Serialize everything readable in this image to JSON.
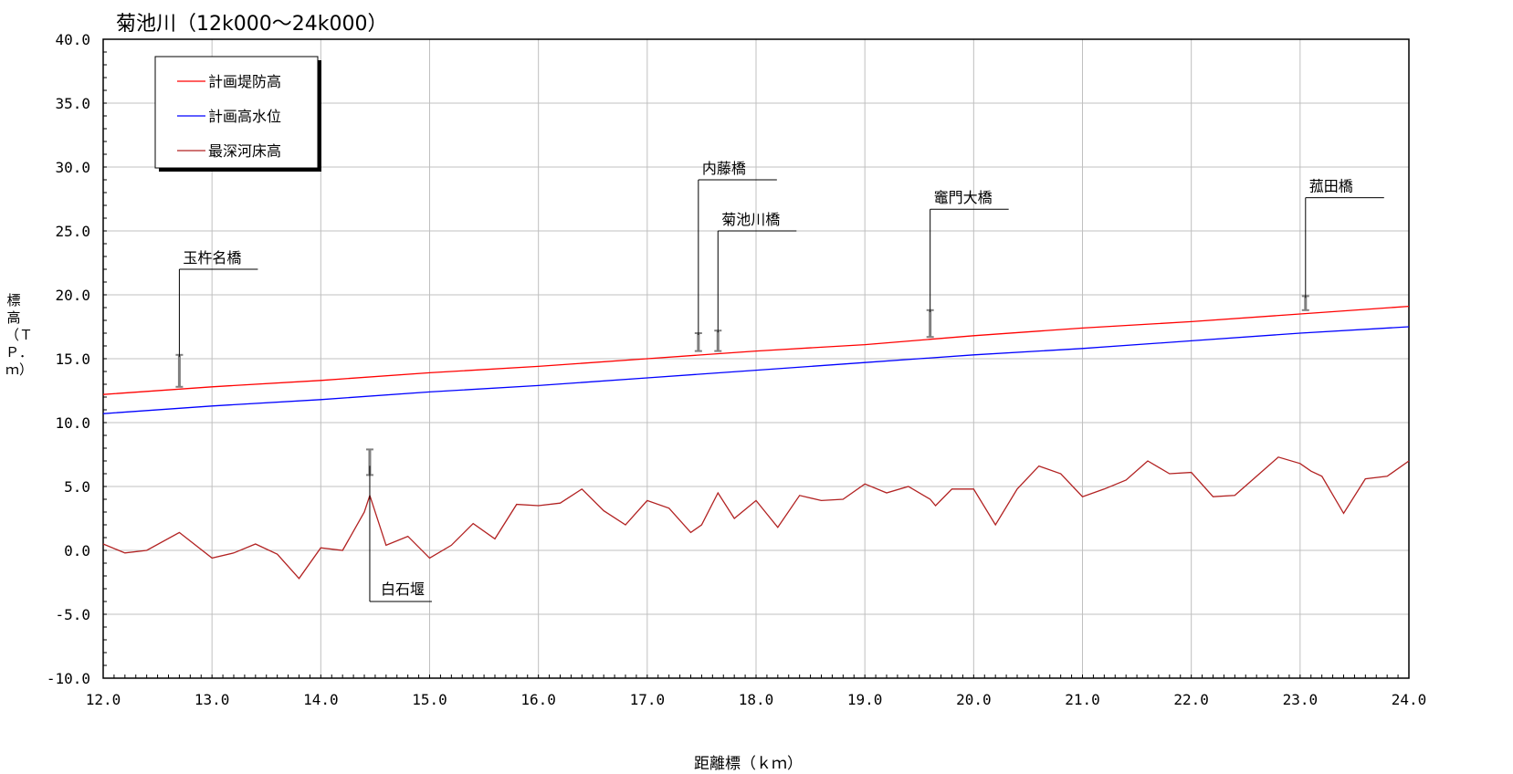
{
  "chart_data": {
    "type": "line",
    "title": "菊池川（12k000～24k000）",
    "xlabel": "距離標（ｋｍ）",
    "ylabel": "標高（ＴＰ．ｍ）",
    "xlim": [
      12.0,
      24.0
    ],
    "ylim": [
      -10.0,
      40.0
    ],
    "x_ticks": [
      "12.0",
      "13.0",
      "14.0",
      "15.0",
      "16.0",
      "17.0",
      "18.0",
      "19.0",
      "20.0",
      "21.0",
      "22.0",
      "23.0",
      "24.0"
    ],
    "y_ticks": [
      "40.0",
      "35.0",
      "30.0",
      "25.0",
      "20.0",
      "15.0",
      "10.0",
      "5.0",
      "0.0",
      "-5.0",
      "-10.0"
    ],
    "grid": true,
    "legend_position": "top-left",
    "series": [
      {
        "name": "計画堤防高",
        "color": "#ff0000",
        "x": [
          12.0,
          13.0,
          14.0,
          15.0,
          16.0,
          17.0,
          18.0,
          19.0,
          20.0,
          21.0,
          22.0,
          23.0,
          24.0
        ],
        "y": [
          12.2,
          12.8,
          13.3,
          13.9,
          14.4,
          15.0,
          15.6,
          16.1,
          16.8,
          17.4,
          17.9,
          18.5,
          19.1
        ]
      },
      {
        "name": "計画高水位",
        "color": "#0000ff",
        "x": [
          12.0,
          13.0,
          14.0,
          15.0,
          16.0,
          17.0,
          18.0,
          19.0,
          20.0,
          21.0,
          22.0,
          23.0,
          24.0
        ],
        "y": [
          10.7,
          11.3,
          11.8,
          12.4,
          12.9,
          13.5,
          14.1,
          14.7,
          15.3,
          15.8,
          16.4,
          17.0,
          17.5
        ]
      },
      {
        "name": "最深河床高",
        "color": "#b22222",
        "x": [
          12.0,
          12.2,
          12.4,
          12.7,
          13.0,
          13.2,
          13.4,
          13.6,
          13.8,
          14.0,
          14.2,
          14.4,
          14.45,
          14.6,
          14.8,
          15.0,
          15.2,
          15.4,
          15.6,
          15.8,
          16.0,
          16.2,
          16.4,
          16.6,
          16.8,
          17.0,
          17.2,
          17.4,
          17.5,
          17.65,
          17.8,
          18.0,
          18.2,
          18.4,
          18.6,
          18.8,
          19.0,
          19.2,
          19.4,
          19.6,
          19.65,
          19.8,
          20.0,
          20.2,
          20.4,
          20.6,
          20.8,
          21.0,
          21.2,
          21.4,
          21.6,
          21.8,
          22.0,
          22.2,
          22.4,
          22.6,
          22.8,
          23.0,
          23.1,
          23.2,
          23.4,
          23.6,
          23.8,
          24.0
        ],
        "y": [
          0.5,
          -0.2,
          0.0,
          1.4,
          -0.6,
          -0.2,
          0.5,
          -0.3,
          -2.2,
          0.2,
          0.0,
          3.0,
          4.3,
          0.4,
          1.1,
          -0.6,
          0.4,
          2.1,
          0.9,
          3.6,
          3.5,
          3.7,
          4.8,
          3.1,
          2.0,
          3.9,
          3.3,
          1.4,
          2.0,
          4.5,
          2.5,
          3.9,
          1.8,
          4.3,
          3.9,
          4.0,
          5.2,
          4.5,
          5.0,
          4.0,
          3.5,
          4.8,
          4.8,
          2.0,
          4.8,
          6.6,
          6.0,
          4.2,
          4.8,
          5.5,
          7.0,
          6.0,
          6.1,
          4.2,
          4.3,
          5.8,
          7.3,
          6.8,
          6.2,
          5.8,
          2.9,
          5.6,
          5.8,
          7.0
        ]
      }
    ],
    "annotations": [
      {
        "label": "玉杵名橋",
        "x": 12.7,
        "bottom": 12.8,
        "top": 15.3,
        "label_y": 22.0
      },
      {
        "label": "内藤橋",
        "x": 17.47,
        "bottom": 15.6,
        "top": 17.0,
        "label_y": 29.0
      },
      {
        "label": "菊池川橋",
        "x": 17.65,
        "bottom": 15.6,
        "top": 17.2,
        "label_y": 25.0
      },
      {
        "label": "竈門大橋",
        "x": 19.6,
        "bottom": 16.7,
        "top": 18.8,
        "label_y": 26.7
      },
      {
        "label": "菰田橋",
        "x": 23.05,
        "bottom": 18.8,
        "top": 19.9,
        "label_y": 27.6
      },
      {
        "label": "白石堰",
        "x": 14.45,
        "bottom": 5.9,
        "top": 7.9,
        "label_y": -4.0,
        "below": true
      }
    ]
  }
}
